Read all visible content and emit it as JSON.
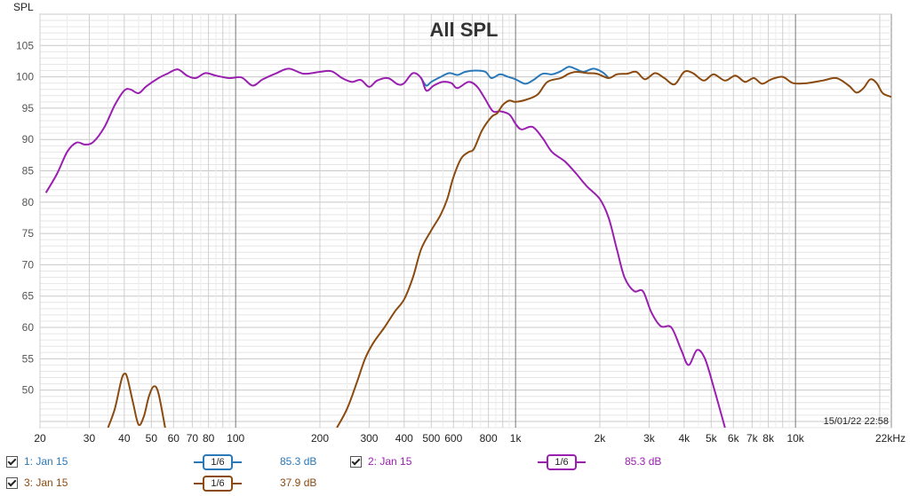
{
  "chart_data": {
    "type": "line",
    "title": "All SPL",
    "ylabel": "SPL",
    "xlabel": "",
    "x_scale": "log",
    "xlim": [
      20,
      22000
    ],
    "ylim": [
      44,
      110
    ],
    "grid": true,
    "timestamp": "15/01/22 22:58",
    "y_ticks": [
      50,
      55,
      60,
      65,
      70,
      75,
      80,
      85,
      90,
      95,
      100,
      105
    ],
    "x_ticks": [
      {
        "v": 20,
        "label": "20"
      },
      {
        "v": 30,
        "label": "30"
      },
      {
        "v": 40,
        "label": "40"
      },
      {
        "v": 50,
        "label": "50"
      },
      {
        "v": 60,
        "label": "60"
      },
      {
        "v": 70,
        "label": "70"
      },
      {
        "v": 80,
        "label": "80"
      },
      {
        "v": 100,
        "label": "100"
      },
      {
        "v": 200,
        "label": "200"
      },
      {
        "v": 300,
        "label": "300"
      },
      {
        "v": 400,
        "label": "400"
      },
      {
        "v": 500,
        "label": "500"
      },
      {
        "v": 600,
        "label": "600"
      },
      {
        "v": 800,
        "label": "800"
      },
      {
        "v": 1000,
        "label": "1k"
      },
      {
        "v": 2000,
        "label": "2k"
      },
      {
        "v": 3000,
        "label": "3k"
      },
      {
        "v": 4000,
        "label": "4k"
      },
      {
        "v": 5000,
        "label": "5k"
      },
      {
        "v": 6000,
        "label": "6k"
      },
      {
        "v": 7000,
        "label": "7k"
      },
      {
        "v": 8000,
        "label": "8k"
      },
      {
        "v": 10000,
        "label": "10k"
      },
      {
        "v": 22000,
        "label": "22kHz"
      }
    ],
    "series": [
      {
        "name": "1: Jan 15",
        "color": "#2a78b8",
        "points": [
          [
            460,
            99.8
          ],
          [
            480,
            98.6
          ],
          [
            500,
            99.2
          ],
          [
            540,
            100.0
          ],
          [
            580,
            100.6
          ],
          [
            620,
            100.3
          ],
          [
            660,
            100.8
          ],
          [
            720,
            101.0
          ],
          [
            780,
            100.8
          ],
          [
            820,
            99.8
          ],
          [
            880,
            100.4
          ],
          [
            940,
            100.0
          ],
          [
            1000,
            99.6
          ],
          [
            1080,
            98.9
          ],
          [
            1150,
            99.4
          ],
          [
            1250,
            100.5
          ],
          [
            1350,
            100.4
          ],
          [
            1450,
            100.9
          ],
          [
            1550,
            101.6
          ],
          [
            1650,
            101.2
          ],
          [
            1750,
            100.8
          ],
          [
            1900,
            101.3
          ],
          [
            2050,
            100.7
          ],
          [
            2150,
            99.8
          ]
        ]
      },
      {
        "name": "2: Jan 15",
        "color": "#9a1fb0",
        "points": [
          [
            21,
            81.5
          ],
          [
            23,
            84.5
          ],
          [
            25,
            88.0
          ],
          [
            27,
            89.5
          ],
          [
            29,
            89.2
          ],
          [
            31,
            89.6
          ],
          [
            34,
            92.0
          ],
          [
            37,
            95.5
          ],
          [
            40,
            97.8
          ],
          [
            42,
            98.0
          ],
          [
            45,
            97.4
          ],
          [
            48,
            98.5
          ],
          [
            53,
            99.8
          ],
          [
            57,
            100.5
          ],
          [
            62,
            101.2
          ],
          [
            67,
            100.2
          ],
          [
            72,
            99.8
          ],
          [
            78,
            100.6
          ],
          [
            85,
            100.2
          ],
          [
            95,
            99.8
          ],
          [
            105,
            99.9
          ],
          [
            115,
            98.6
          ],
          [
            125,
            99.6
          ],
          [
            140,
            100.6
          ],
          [
            155,
            101.3
          ],
          [
            175,
            100.5
          ],
          [
            200,
            100.8
          ],
          [
            220,
            100.9
          ],
          [
            240,
            99.8
          ],
          [
            260,
            99.2
          ],
          [
            280,
            99.5
          ],
          [
            300,
            98.4
          ],
          [
            320,
            99.4
          ],
          [
            350,
            99.8
          ],
          [
            380,
            98.8
          ],
          [
            400,
            99.0
          ],
          [
            430,
            100.6
          ],
          [
            460,
            99.8
          ],
          [
            480,
            97.8
          ],
          [
            510,
            98.6
          ],
          [
            550,
            99.2
          ],
          [
            590,
            99.0
          ],
          [
            620,
            98.2
          ],
          [
            680,
            99.2
          ],
          [
            730,
            98.4
          ],
          [
            780,
            96.4
          ],
          [
            830,
            94.5
          ],
          [
            880,
            94.5
          ],
          [
            950,
            94.0
          ],
          [
            1000,
            92.5
          ],
          [
            1050,
            91.6
          ],
          [
            1150,
            92.0
          ],
          [
            1250,
            90.2
          ],
          [
            1350,
            88.0
          ],
          [
            1500,
            86.5
          ],
          [
            1650,
            84.5
          ],
          [
            1800,
            82.5
          ],
          [
            2000,
            80.5
          ],
          [
            2150,
            77.5
          ],
          [
            2300,
            72.5
          ],
          [
            2450,
            68.0
          ],
          [
            2650,
            65.8
          ],
          [
            2850,
            65.8
          ],
          [
            3050,
            62.5
          ],
          [
            3300,
            60.2
          ],
          [
            3600,
            60.0
          ],
          [
            3900,
            56.5
          ],
          [
            4150,
            54.0
          ],
          [
            4450,
            56.4
          ],
          [
            4750,
            55.0
          ],
          [
            5100,
            50.5
          ],
          [
            5600,
            44.0
          ]
        ]
      },
      {
        "name": "3: Jan 15",
        "color": "#8a4a10",
        "points": [
          [
            35,
            44
          ],
          [
            37,
            47
          ],
          [
            39,
            51.5
          ],
          [
            40,
            52.6
          ],
          [
            41,
            52.0
          ],
          [
            43,
            48
          ],
          [
            45,
            44.5
          ],
          [
            47,
            45.8
          ],
          [
            49,
            49
          ],
          [
            51,
            50.6
          ],
          [
            53,
            49.5
          ],
          [
            56,
            44
          ],
          [
            230,
            44
          ],
          [
            250,
            47
          ],
          [
            270,
            51
          ],
          [
            290,
            55
          ],
          [
            310,
            57.5
          ],
          [
            340,
            60
          ],
          [
            370,
            62.5
          ],
          [
            400,
            64.5
          ],
          [
            430,
            68
          ],
          [
            460,
            72.5
          ],
          [
            500,
            75.5
          ],
          [
            540,
            78.0
          ],
          [
            570,
            80.5
          ],
          [
            600,
            84.0
          ],
          [
            640,
            87.0
          ],
          [
            680,
            88.0
          ],
          [
            710,
            88.5
          ],
          [
            760,
            91.5
          ],
          [
            820,
            93.6
          ],
          [
            860,
            94.2
          ],
          [
            900,
            95.5
          ],
          [
            950,
            96.2
          ],
          [
            1000,
            96.0
          ],
          [
            1100,
            96.4
          ],
          [
            1200,
            97.2
          ],
          [
            1300,
            99.2
          ],
          [
            1450,
            99.8
          ],
          [
            1550,
            100.5
          ],
          [
            1650,
            100.8
          ],
          [
            1800,
            100.6
          ],
          [
            1950,
            100.5
          ],
          [
            2150,
            99.8
          ],
          [
            2300,
            100.4
          ],
          [
            2500,
            100.5
          ],
          [
            2700,
            100.8
          ],
          [
            2900,
            99.6
          ],
          [
            3150,
            100.6
          ],
          [
            3400,
            99.8
          ],
          [
            3700,
            98.8
          ],
          [
            4000,
            100.8
          ],
          [
            4300,
            100.6
          ],
          [
            4700,
            99.4
          ],
          [
            5100,
            100.4
          ],
          [
            5600,
            99.4
          ],
          [
            6100,
            100.2
          ],
          [
            6600,
            99.2
          ],
          [
            7100,
            99.8
          ],
          [
            7600,
            98.9
          ],
          [
            8200,
            99.6
          ],
          [
            9000,
            100.0
          ],
          [
            9800,
            99.0
          ],
          [
            11000,
            99.0
          ],
          [
            12500,
            99.4
          ],
          [
            14000,
            99.8
          ],
          [
            15500,
            98.6
          ],
          [
            16500,
            97.5
          ],
          [
            17500,
            98.2
          ],
          [
            18500,
            99.6
          ],
          [
            19500,
            99.0
          ],
          [
            20500,
            97.4
          ],
          [
            22000,
            96.8
          ]
        ]
      }
    ]
  },
  "legend": [
    {
      "label": "1: Jan 15",
      "smoothing": "1/6",
      "level": "85.3 dB",
      "color": "#2a78b8"
    },
    {
      "label": "2: Jan 15",
      "smoothing": "1/6",
      "level": "85.3 dB",
      "color": "#9a1fb0"
    },
    {
      "label": "3: Jan 15",
      "smoothing": "1/6",
      "level": "37.9 dB",
      "color": "#8a4a10"
    }
  ]
}
